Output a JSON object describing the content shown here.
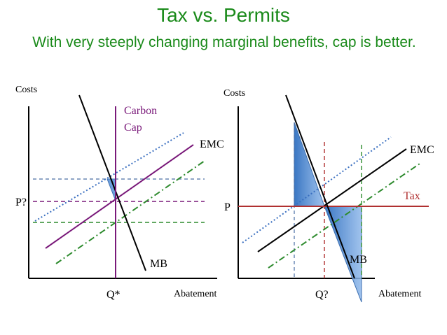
{
  "slide": {
    "title": "Tax vs. Permits",
    "subtitle": "With very steeply changing marginal benefits, cap is better.",
    "title_color": "#1a8a1a"
  },
  "left_panel": {
    "y_axis_label": "Costs",
    "x_axis_label": "Abatement",
    "price_label": "P?",
    "quantity_label": "Q*",
    "emc_label": "EMC",
    "mb_label": "MB",
    "cap_label_line1": "Carbon",
    "cap_label_line2": "Cap",
    "cap_color": "#7a1a7a"
  },
  "right_panel": {
    "y_axis_label": "Costs",
    "x_axis_label": "Abatement",
    "price_label": "P",
    "quantity_label": "Q?",
    "emc_label": "EMC",
    "mb_label": "MB",
    "tax_label": "Tax",
    "tax_color": "#b03030",
    "deadweight_fill": "#4a86d0"
  }
}
